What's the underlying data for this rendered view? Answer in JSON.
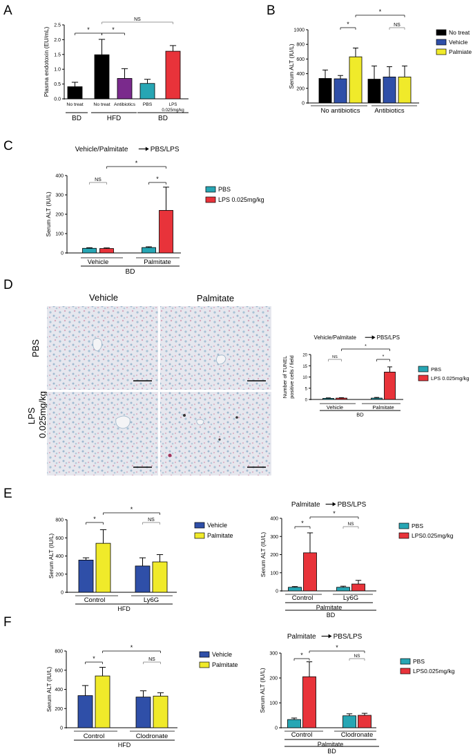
{
  "colors": {
    "black": "#000000",
    "blue": "#2f4fa8",
    "yellow": "#f0ea2a",
    "purple": "#7a2a8c",
    "teal": "#27a6b4",
    "red": "#e8333a"
  },
  "chart_data": [
    {
      "panel": "A",
      "type": "bar",
      "ylabel": "Plasma endotoxin (EU/mL)",
      "ylim": [
        0,
        2.5
      ],
      "yticks": [
        "0.0",
        "0.5",
        "1.0",
        "1.5",
        "2.0",
        "2.5"
      ],
      "categories": [
        "No treat",
        "No treat",
        "Antibiotics",
        "PBS",
        "LPS\n0.025mg/kg"
      ],
      "values": [
        0.41,
        1.49,
        0.69,
        0.52,
        1.61
      ],
      "errors": [
        0.15,
        0.52,
        0.33,
        0.14,
        0.19
      ],
      "colors": [
        "black",
        "black",
        "purple",
        "teal",
        "red"
      ],
      "groups": [
        "BD",
        "HFD",
        "BD"
      ],
      "annotations": [
        "*",
        "*",
        "NS"
      ]
    },
    {
      "panel": "B",
      "type": "bar",
      "ylabel": "Serum ALT (IU/L)",
      "ylim": [
        0,
        1000
      ],
      "yticks": [
        "0",
        "200",
        "400",
        "600",
        "800",
        "1000"
      ],
      "categories": [
        "No antibiotics",
        "Antibiotics"
      ],
      "series": [
        {
          "name": "No treat",
          "values": [
            335,
            325
          ],
          "errors": [
            115,
            180
          ]
        },
        {
          "name": "Vehicle",
          "values": [
            330,
            355
          ],
          "errors": [
            45,
            140
          ]
        },
        {
          "name": "Palmiate",
          "values": [
            630,
            355
          ],
          "errors": [
            120,
            150
          ]
        }
      ],
      "annotations": [
        "*",
        "NS",
        "*"
      ]
    },
    {
      "panel": "C",
      "type": "bar",
      "title": "Vehicle/Palmitate",
      "title_right": "PBS/LPS",
      "ylabel": "Serum ALT (IU/L)",
      "ylim": [
        0,
        400
      ],
      "yticks": [
        "0",
        "100",
        "200",
        "300",
        "400"
      ],
      "categories": [
        "Vehicle",
        "Palmitate"
      ],
      "series": [
        {
          "name": "PBS",
          "values": [
            24,
            28
          ],
          "errors": [
            3,
            4
          ]
        },
        {
          "name": "LPS 0.025mg/kg",
          "values": [
            23,
            220
          ],
          "errors": [
            3,
            120
          ]
        }
      ],
      "group_label": "BD",
      "annotations": [
        "NS",
        "*",
        "*"
      ]
    },
    {
      "panel": "D",
      "type": "bar",
      "title": "Vehicle/Palmitate",
      "title_right": "PBS/LPS",
      "ylabel": "Number of TUNEL\npositive cells / field",
      "ylim": [
        0,
        20
      ],
      "yticks": [
        "0",
        "5",
        "10",
        "15",
        "20"
      ],
      "categories": [
        "Vehicle",
        "Palmitate"
      ],
      "series": [
        {
          "name": "PBS",
          "values": [
            0.5,
            0.6
          ],
          "errors": [
            0.2,
            0.3
          ]
        },
        {
          "name": "LPS 0.025mg/kg",
          "values": [
            0.6,
            12.2
          ],
          "errors": [
            0.2,
            2.3
          ]
        }
      ],
      "group_label": "BD",
      "annotations": [
        "NS",
        "*",
        "*"
      ]
    },
    {
      "panel": "E-left",
      "type": "bar",
      "ylabel": "Serum ALT (IU/L)",
      "ylim": [
        0,
        800
      ],
      "yticks": [
        "0",
        "200",
        "400",
        "600",
        "800"
      ],
      "categories": [
        "Control",
        "Ly6G"
      ],
      "series": [
        {
          "name": "Vehicle",
          "values": [
            355,
            290
          ],
          "errors": [
            25,
            90
          ]
        },
        {
          "name": "Palmitate",
          "values": [
            540,
            335
          ],
          "errors": [
            150,
            80
          ]
        }
      ],
      "group_label": "HFD",
      "annotations": [
        "*",
        "NS",
        "*"
      ]
    },
    {
      "panel": "E-right",
      "type": "bar",
      "title": "Palmitate",
      "title_right": "PBS/LPS",
      "ylabel": "Serum ALT (IU/L)",
      "ylim": [
        0,
        400
      ],
      "yticks": [
        "0",
        "100",
        "200",
        "300",
        "400"
      ],
      "categories": [
        "Control",
        "Ly6G"
      ],
      "series": [
        {
          "name": "PBS",
          "values": [
            20,
            20
          ],
          "errors": [
            4,
            6
          ]
        },
        {
          "name": "LPS0.025mg/kg",
          "values": [
            210,
            38
          ],
          "errors": [
            110,
            20
          ]
        }
      ],
      "group_labels": [
        "Palmitate",
        "BD"
      ],
      "annotations": [
        "*",
        "NS",
        "*"
      ]
    },
    {
      "panel": "F-left",
      "type": "bar",
      "ylabel": "Serum ALT (IU/L)",
      "ylim": [
        0,
        800
      ],
      "yticks": [
        "0",
        "200",
        "400",
        "600",
        "800"
      ],
      "categories": [
        "Control",
        "Clodronate"
      ],
      "series": [
        {
          "name": "Vehicle",
          "values": [
            335,
            320
          ],
          "errors": [
            105,
            65
          ]
        },
        {
          "name": "Palmitate",
          "values": [
            540,
            330
          ],
          "errors": [
            90,
            35
          ]
        }
      ],
      "group_label": "HFD",
      "annotations": [
        "*",
        "NS",
        "*"
      ]
    },
    {
      "panel": "F-right",
      "type": "bar",
      "title": "Palmitate",
      "title_right": "PBS/LPS",
      "ylabel": "Serum ALT (IU/L)",
      "ylim": [
        0,
        300
      ],
      "yticks": [
        "0",
        "100",
        "200",
        "300"
      ],
      "categories": [
        "Control",
        "Clodronate"
      ],
      "series": [
        {
          "name": "PBS",
          "values": [
            33,
            48
          ],
          "errors": [
            6,
            8
          ]
        },
        {
          "name": "LPS0.025mg/kg",
          "values": [
            205,
            50
          ],
          "errors": [
            60,
            8
          ]
        }
      ],
      "group_labels": [
        "Palmitate",
        "BD"
      ],
      "annotations": [
        "*",
        "NS",
        "*"
      ]
    }
  ],
  "micrographs": {
    "col_labels": [
      "Vehicle",
      "Palmitate"
    ],
    "row_labels": [
      "PBS",
      "LPS\n0.025mg/kg"
    ]
  },
  "panel_letters": [
    "A",
    "B",
    "C",
    "D",
    "E",
    "F"
  ]
}
